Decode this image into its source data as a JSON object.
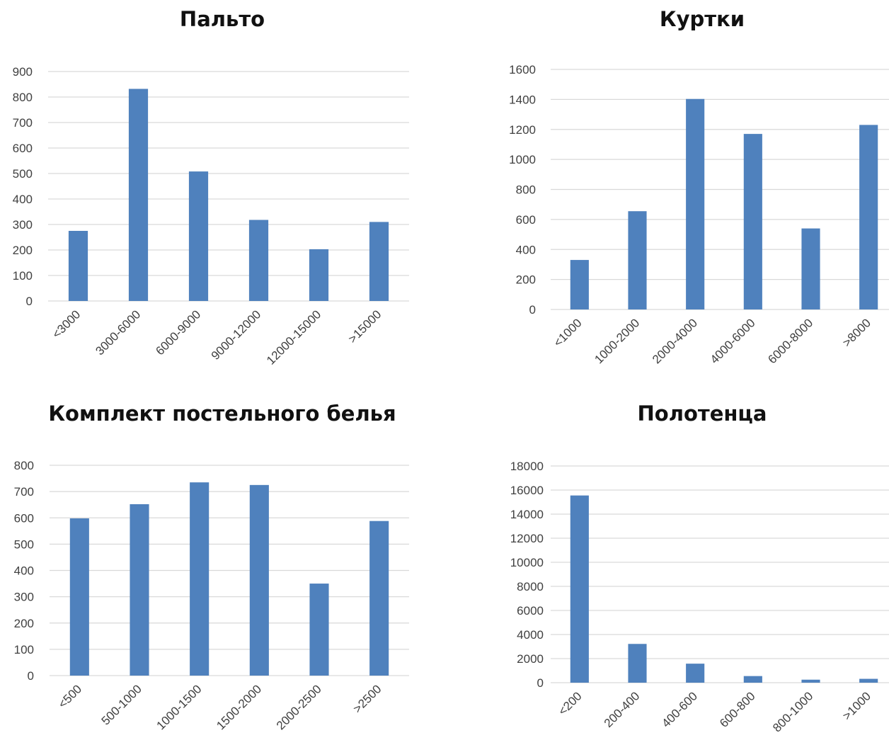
{
  "chart_data": [
    {
      "type": "bar",
      "title": "Пальто",
      "categories": [
        "<3000",
        "3000-6000",
        "6000-9000",
        "9000-12000",
        "12000-15000",
        ">15000"
      ],
      "values": [
        275,
        832,
        508,
        318,
        203,
        310
      ],
      "ylim": [
        0,
        900
      ],
      "yticks": [
        0,
        100,
        200,
        300,
        400,
        500,
        600,
        700,
        800,
        900
      ],
      "grid": true,
      "bar_color": "#4f81bd"
    },
    {
      "type": "bar",
      "title": "Куртки",
      "categories": [
        "<1000",
        "1000-2000",
        "2000-4000",
        "4000-6000",
        "6000-8000",
        ">8000"
      ],
      "values": [
        330,
        655,
        1403,
        1170,
        540,
        1230
      ],
      "ylim": [
        0,
        1600
      ],
      "yticks": [
        0,
        200,
        400,
        600,
        800,
        1000,
        1200,
        1400,
        1600
      ],
      "grid": true,
      "bar_color": "#4f81bd"
    },
    {
      "type": "bar",
      "title": "Комплект постельного белья",
      "categories": [
        "<500",
        "500-1000",
        "1000-1500",
        "1500-2000",
        "2000-2500",
        ">2500"
      ],
      "values": [
        598,
        652,
        735,
        725,
        350,
        588
      ],
      "ylim": [
        0,
        800
      ],
      "yticks": [
        0,
        100,
        200,
        300,
        400,
        500,
        600,
        700,
        800
      ],
      "grid": true,
      "bar_color": "#4f81bd"
    },
    {
      "type": "bar",
      "title": "Полотенца",
      "categories": [
        "<200",
        "200-400",
        "400-600",
        "600-800",
        "800-1000",
        ">1000"
      ],
      "values": [
        15550,
        3220,
        1580,
        550,
        250,
        320
      ],
      "ylim": [
        0,
        18000
      ],
      "yticks": [
        0,
        2000,
        4000,
        6000,
        8000,
        10000,
        12000,
        14000,
        16000,
        18000
      ],
      "grid": true,
      "bar_color": "#4f81bd"
    }
  ]
}
